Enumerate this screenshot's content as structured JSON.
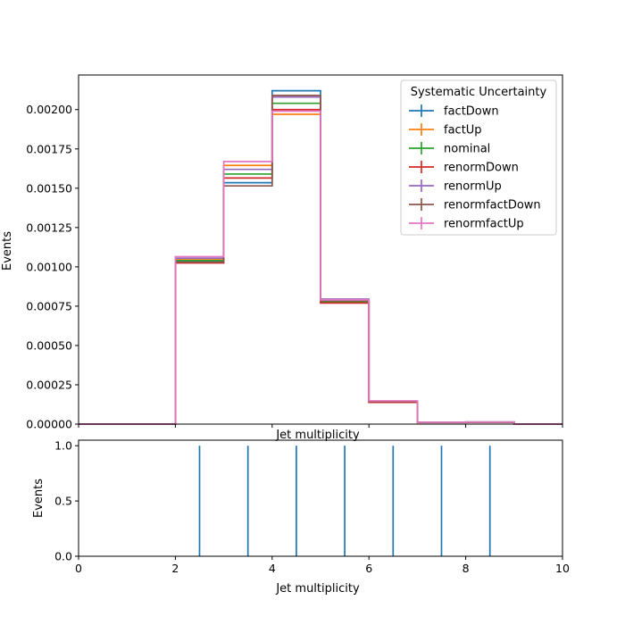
{
  "chart_data": [
    {
      "type": "step",
      "xlabel": "Jet multiplicity",
      "ylabel": "Events",
      "xlim": [
        0,
        10
      ],
      "ylim": [
        0,
        0.00222
      ],
      "yticks": [
        "0.00000",
        "0.00025",
        "0.00050",
        "0.00075",
        "0.00100",
        "0.00125",
        "0.00150",
        "0.00175",
        "0.00200"
      ],
      "ytick_values": [
        0,
        0.00025,
        0.0005,
        0.00075,
        0.001,
        0.00125,
        0.0015,
        0.00175,
        0.002
      ],
      "xticks": [
        0,
        2,
        4,
        6,
        8,
        10
      ],
      "show_xtick_labels": false,
      "grid": false,
      "legend": {
        "title": "Systematic Uncertainty",
        "placement": "top-right"
      },
      "bin_edges": [
        0,
        1,
        2,
        3,
        4,
        5,
        6,
        7,
        8,
        9,
        10
      ],
      "series": [
        {
          "name": "factDown",
          "color": "#1f77b4",
          "values": [
            0,
            0,
            0.001035,
            0.001535,
            0.00212,
            0.00079,
            0.000145,
            1.1e-05,
            1.3e-05,
            0
          ]
        },
        {
          "name": "factUp",
          "color": "#ff7f0e",
          "values": [
            0,
            0,
            0.001045,
            0.001645,
            0.00197,
            0.00078,
            0.00014,
            1.1e-05,
            1.2e-05,
            0
          ]
        },
        {
          "name": "nominal",
          "color": "#2ca02c",
          "values": [
            0,
            0,
            0.00104,
            0.00159,
            0.00204,
            0.00078,
            0.000142,
            1.1e-05,
            1.2e-05,
            0
          ]
        },
        {
          "name": "renormDown",
          "color": "#d62728",
          "values": [
            0,
            0,
            0.001025,
            0.001565,
            0.002,
            0.00077,
            0.000138,
            1e-05,
            1.2e-05,
            0
          ]
        },
        {
          "name": "renormUp",
          "color": "#9467bd",
          "values": [
            0,
            0,
            0.001055,
            0.00162,
            0.00208,
            0.000795,
            0.000146,
            1.1e-05,
            1.3e-05,
            0
          ]
        },
        {
          "name": "renormfactDown",
          "color": "#8c564b",
          "values": [
            0,
            0,
            0.00103,
            0.001515,
            0.00209,
            0.000785,
            0.000143,
            1.1e-05,
            1.2e-05,
            0
          ]
        },
        {
          "name": "renormfactUp",
          "color": "#e377c2",
          "values": [
            0,
            0,
            0.001065,
            0.00167,
            0.00199,
            0.00079,
            0.000148,
            1.1e-05,
            1.3e-05,
            0
          ]
        }
      ]
    },
    {
      "type": "vlines",
      "xlabel": "Jet multiplicity",
      "ylabel": "Events",
      "xlim": [
        0,
        10
      ],
      "ylim": [
        0,
        1.05
      ],
      "xticks": [
        0,
        2,
        4,
        6,
        8,
        10
      ],
      "xtick_labels": [
        "0",
        "2",
        "4",
        "6",
        "8",
        "10"
      ],
      "yticks": [
        0,
        0.5,
        1
      ],
      "ytick_labels": [
        "0.0",
        "0.5",
        "1.0"
      ],
      "color": "#1f77b4",
      "x": [
        2.5,
        3.5,
        4.5,
        5.5,
        6.5,
        7.5,
        8.5
      ],
      "values": [
        1,
        1,
        1,
        1,
        1,
        1,
        1
      ]
    }
  ]
}
